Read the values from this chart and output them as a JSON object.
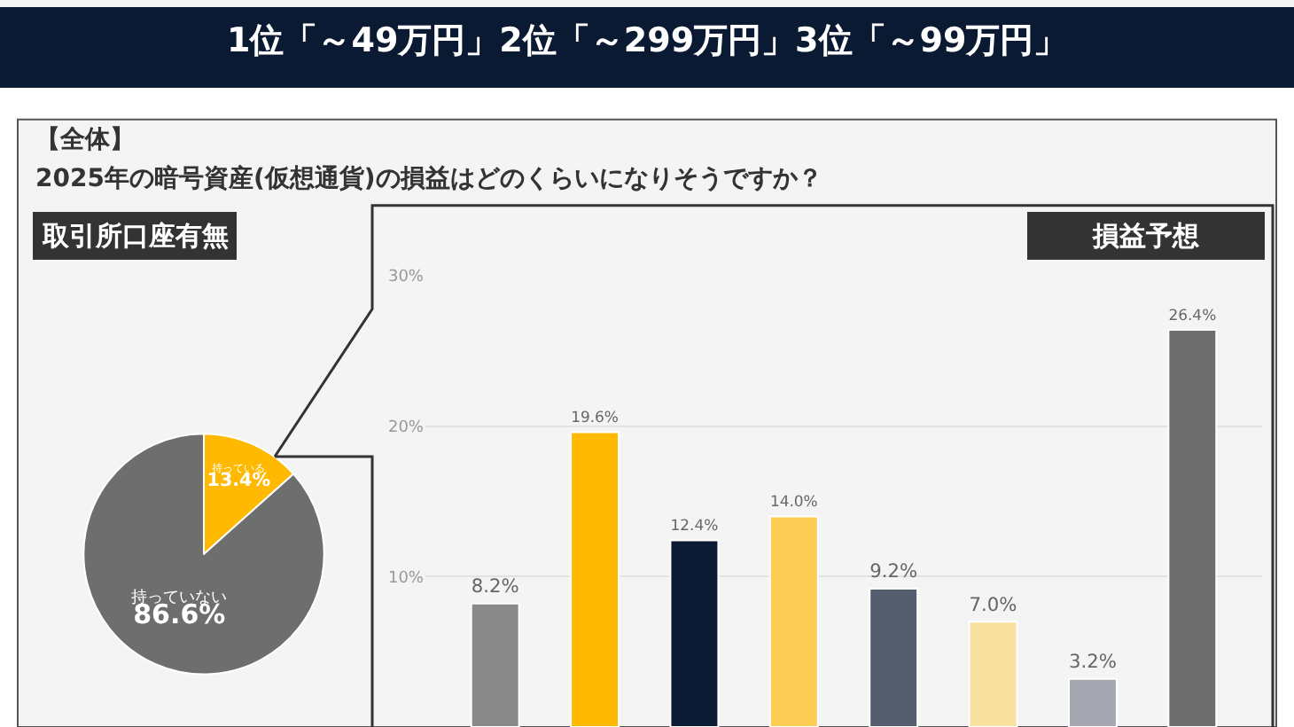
{
  "chart_data": [
    {
      "type": "pie",
      "title": "取引所口座有無",
      "annotations": [
        "1位「～49万円」2位「～299万円」3位「～99万円」",
        "【全体】",
        "2025年の暗号資産(仮想通貨)の損益はどのくらいになりそうですか？"
      ],
      "categories": [
        "持っている",
        "持っていない"
      ],
      "values": [
        13.4,
        86.6
      ],
      "value_labels": [
        "13.4%",
        "86.6%"
      ],
      "colors": [
        "#ffb900",
        "#6e6e6e"
      ]
    },
    {
      "type": "bar",
      "title": "損益予想",
      "categories": [
        null,
        null,
        null,
        null,
        null,
        null,
        null,
        null
      ],
      "values": [
        8.2,
        19.6,
        12.4,
        14.0,
        9.2,
        7.0,
        3.2,
        26.4
      ],
      "value_labels": [
        "8.2%",
        "19.6%",
        "12.4%",
        "14.0%",
        "9.2%",
        "7.0%",
        "3.2%",
        "26.4%"
      ],
      "colors": [
        "#898989",
        "#ffb900",
        "#0b1a33",
        "#fccd55",
        "#545e6e",
        "#f8e09f",
        "#a5a8b0",
        "#6e6e6e"
      ],
      "ylim": [
        0,
        30
      ],
      "yticks": [
        {
          "value": 10,
          "label": "10%"
        },
        {
          "value": 20,
          "label": "20%"
        },
        {
          "value": 30,
          "label": "30%"
        }
      ],
      "grid": "y"
    }
  ]
}
